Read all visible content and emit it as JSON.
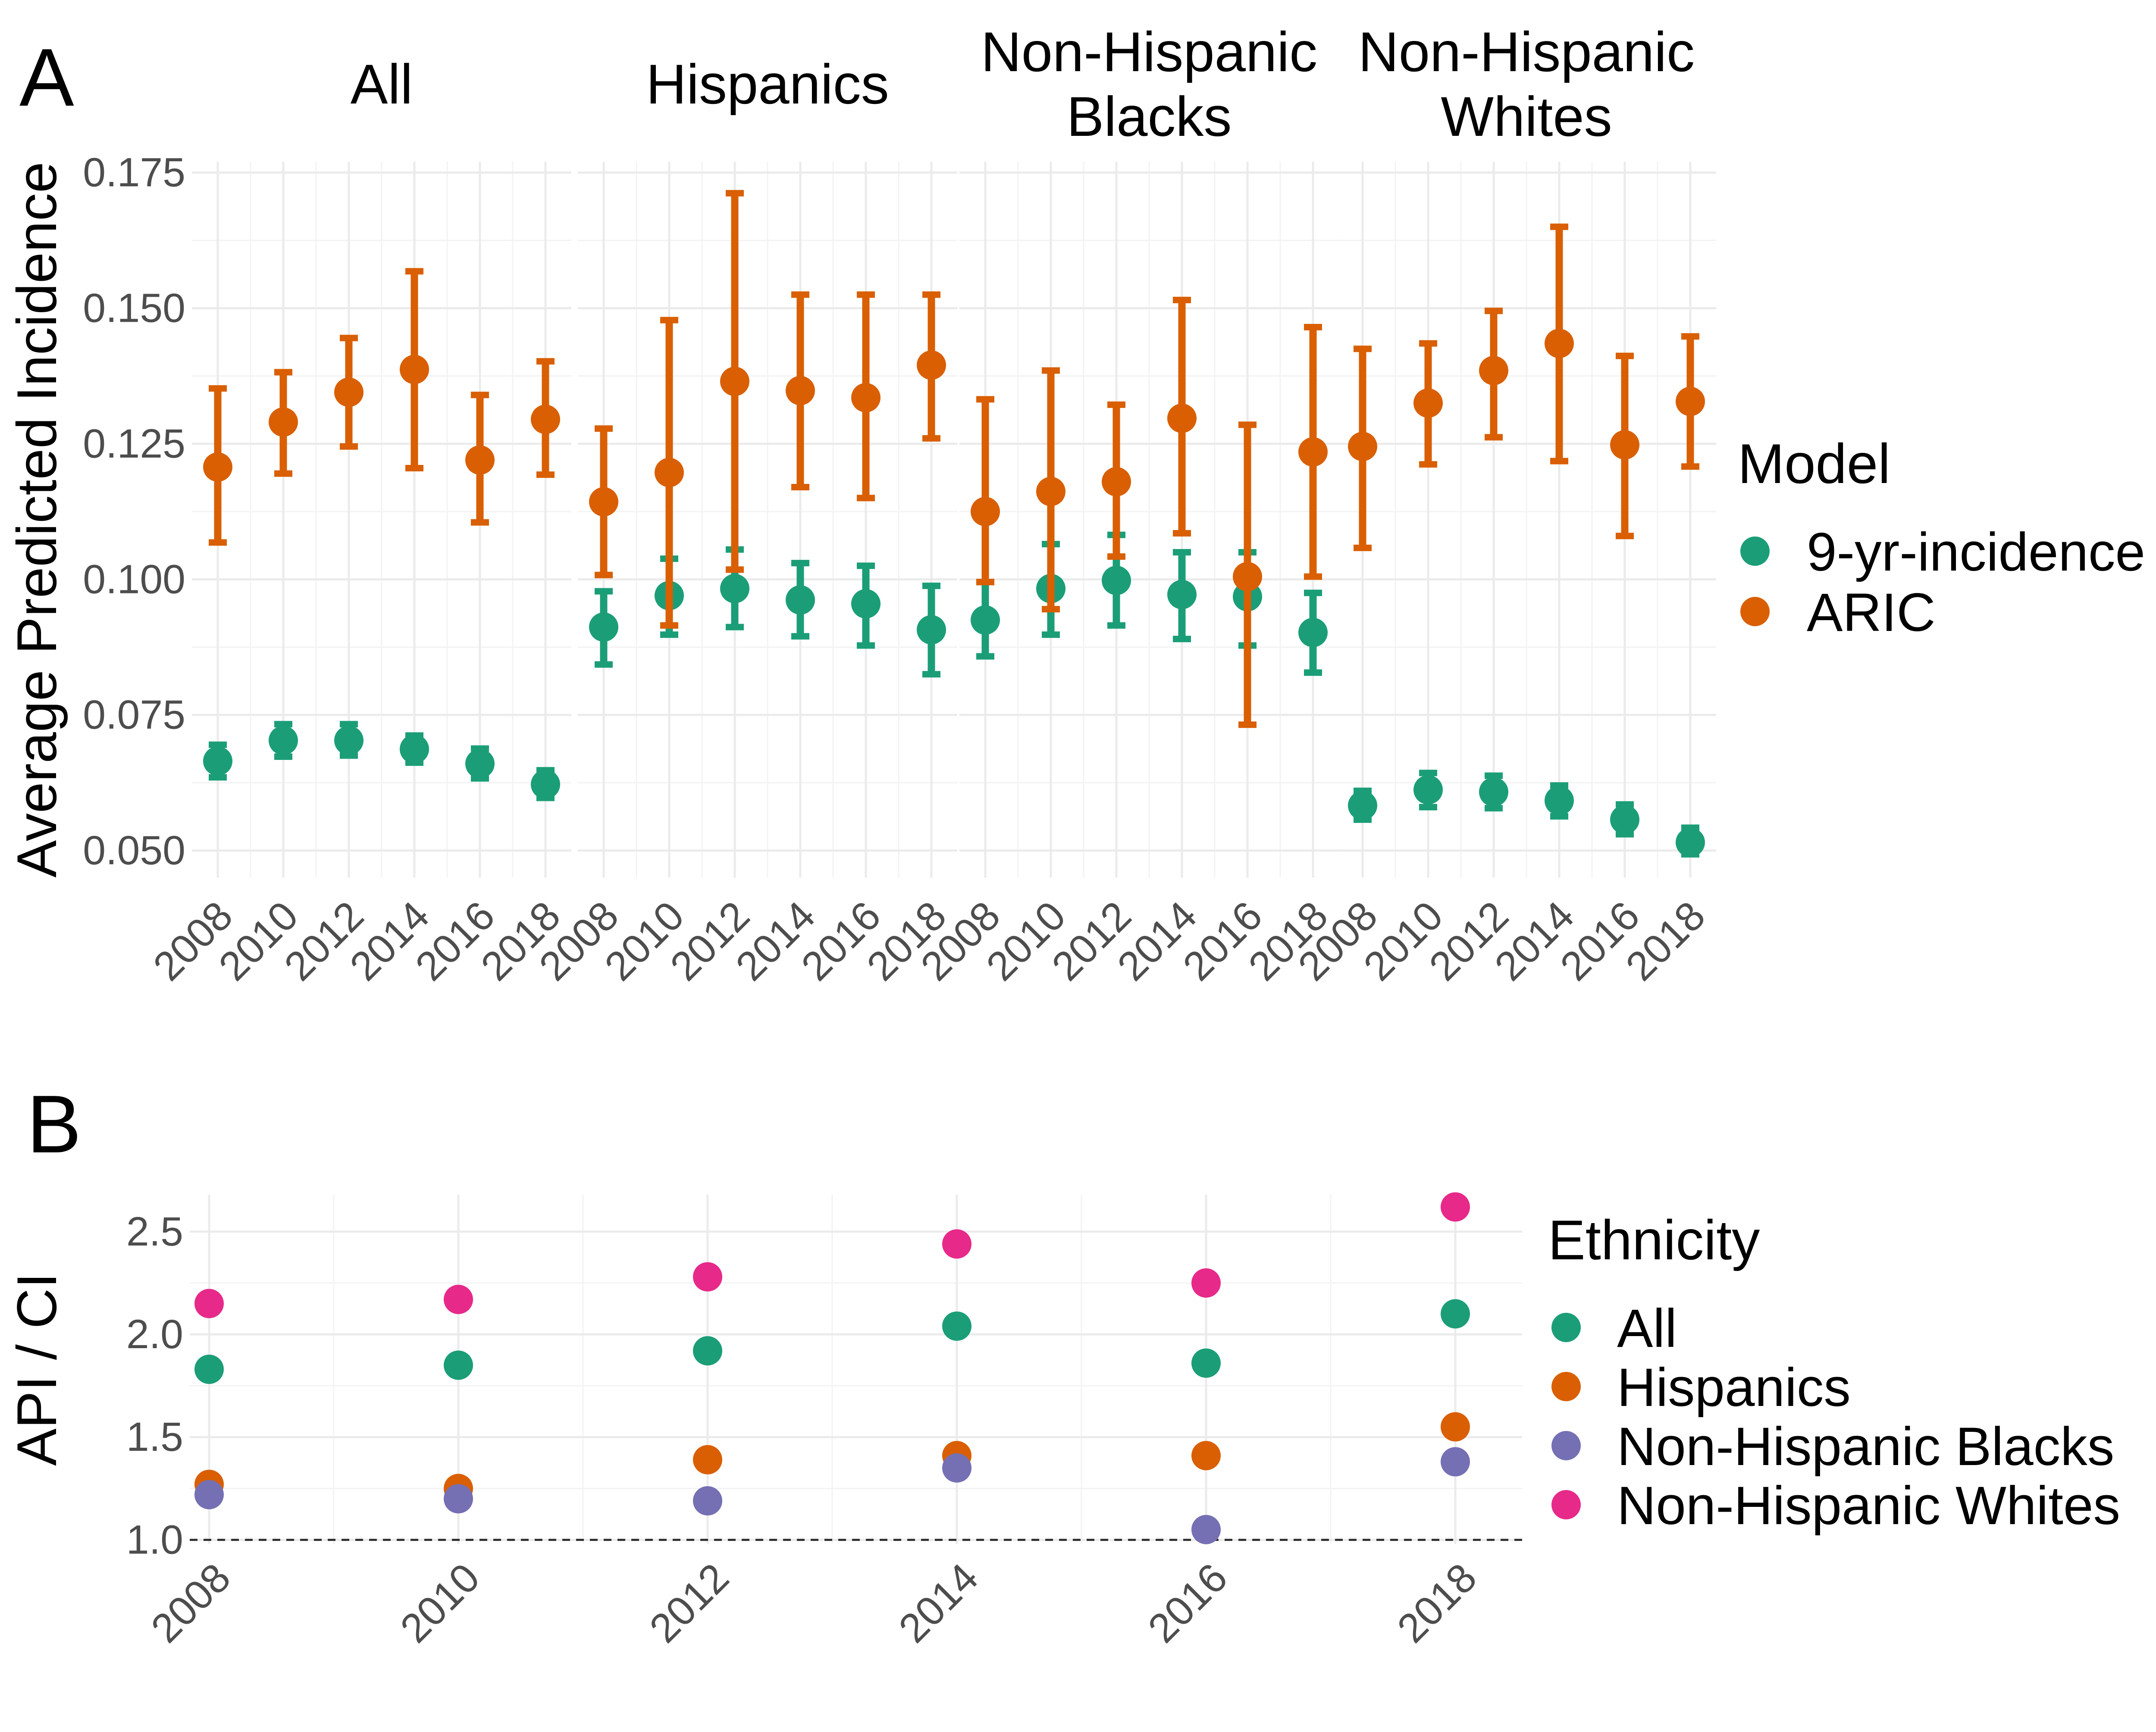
{
  "colors": {
    "9-yr-incidence": "#1b9e77",
    "ARIC": "#d95f02",
    "All": "#1b9e77",
    "Hispanics": "#d95f02",
    "Non-Hispanic Blacks": "#7570b3",
    "Non-Hispanic Whites": "#e7298a"
  },
  "chart_data": [
    {
      "panel": "A",
      "type": "scatter",
      "ylabel": "Average Predicted Incidence",
      "ylim": [
        0.045,
        0.177
      ],
      "yticks": [
        "0.050",
        "0.075",
        "0.100",
        "0.125",
        "0.150",
        "0.175"
      ],
      "ytick_values": [
        0.05,
        0.075,
        0.1,
        0.125,
        0.15,
        0.175
      ],
      "x": [
        2008,
        2010,
        2012,
        2014,
        2016,
        2018
      ],
      "xticks": [
        "2008",
        "2010",
        "2012",
        "2014",
        "2016",
        "2018"
      ],
      "legend": {
        "title": "Model",
        "entries": [
          "9-yr-incidence",
          "ARIC"
        ],
        "position": "right"
      },
      "facets": [
        {
          "title_lines": [
            "All"
          ],
          "series": [
            {
              "name": "9-yr-incidence",
              "values": [
                0.0665,
                0.0703,
                0.0703,
                0.0687,
                0.066,
                0.0622
              ],
              "lower": [
                0.0635,
                0.0673,
                0.0675,
                0.0662,
                0.0633,
                0.0597
              ],
              "upper": [
                0.0695,
                0.0733,
                0.0733,
                0.0712,
                0.0688,
                0.0648
              ]
            },
            {
              "name": "ARIC",
              "values": [
                0.1207,
                0.129,
                0.1345,
                0.1387,
                0.122,
                0.1295
              ],
              "lower": [
                0.1068,
                0.1195,
                0.1245,
                0.1205,
                0.1105,
                0.1193
              ],
              "upper": [
                0.1352,
                0.1382,
                0.1445,
                0.1568,
                0.134,
                0.1402
              ]
            }
          ]
        },
        {
          "title_lines": [
            "Hispanics"
          ],
          "series": [
            {
              "name": "9-yr-incidence",
              "values": [
                0.0912,
                0.097,
                0.0983,
                0.0962,
                0.0955,
                0.0907
              ],
              "lower": [
                0.0843,
                0.0898,
                0.0912,
                0.0895,
                0.0878,
                0.0825
              ],
              "upper": [
                0.0978,
                0.1038,
                0.1055,
                0.103,
                0.1025,
                0.0988
              ]
            },
            {
              "name": "ARIC",
              "values": [
                0.1143,
                0.1197,
                0.1365,
                0.1348,
                0.1335,
                0.1395
              ],
              "lower": [
                0.1008,
                0.0915,
                0.1018,
                0.117,
                0.115,
                0.126
              ],
              "upper": [
                0.1278,
                0.1478,
                0.1712,
                0.1525,
                0.1525,
                0.1525
              ]
            }
          ]
        },
        {
          "title_lines": [
            "Non-Hispanic",
            "Blacks"
          ],
          "series": [
            {
              "name": "9-yr-incidence",
              "values": [
                0.0925,
                0.0983,
                0.0998,
                0.0972,
                0.0968,
                0.0902
              ],
              "lower": [
                0.0858,
                0.0898,
                0.0915,
                0.089,
                0.0878,
                0.0828
              ],
              "upper": [
                0.0995,
                0.1065,
                0.1082,
                0.105,
                0.105,
                0.0975
              ]
            },
            {
              "name": "ARIC",
              "values": [
                0.1125,
                0.1162,
                0.118,
                0.1297,
                0.1005,
                0.1235
              ],
              "lower": [
                0.0995,
                0.0945,
                0.1042,
                0.1085,
                0.0732,
                0.1005
              ],
              "upper": [
                0.1332,
                0.1385,
                0.1322,
                0.1515,
                0.1285,
                0.1465
              ]
            }
          ]
        },
        {
          "title_lines": [
            "Non-Hispanic",
            "Whites"
          ],
          "series": [
            {
              "name": "9-yr-incidence",
              "values": [
                0.0583,
                0.0612,
                0.0608,
                0.0592,
                0.0557,
                0.0515
              ],
              "lower": [
                0.0557,
                0.058,
                0.0578,
                0.0563,
                0.053,
                0.0493
              ],
              "upper": [
                0.061,
                0.0643,
                0.0638,
                0.062,
                0.0585,
                0.0542
              ]
            },
            {
              "name": "ARIC",
              "values": [
                0.1245,
                0.1325,
                0.1385,
                0.1435,
                0.1248,
                0.1328
              ],
              "lower": [
                0.1058,
                0.1212,
                0.1262,
                0.1218,
                0.108,
                0.1208
              ],
              "upper": [
                0.1425,
                0.1435,
                0.1495,
                0.165,
                0.1412,
                0.1448
              ]
            }
          ]
        }
      ]
    },
    {
      "panel": "B",
      "type": "scatter",
      "ylabel": "API / CI",
      "ylim": [
        0.98,
        2.68
      ],
      "yticks": [
        "1.0",
        "1.5",
        "2.0",
        "2.5"
      ],
      "ytick_values": [
        1.0,
        1.5,
        2.0,
        2.5
      ],
      "x": [
        2008,
        2010,
        2012,
        2014,
        2016,
        2018
      ],
      "xticks": [
        "2008",
        "2010",
        "2012",
        "2014",
        "2016",
        "2018"
      ],
      "reference_line": 1.0,
      "legend": {
        "title": "Ethnicity",
        "entries": [
          "All",
          "Hispanics",
          "Non-Hispanic Blacks",
          "Non-Hispanic Whites"
        ],
        "position": "right"
      },
      "series": [
        {
          "name": "All",
          "values": [
            1.83,
            1.85,
            1.92,
            2.04,
            1.86,
            2.1
          ]
        },
        {
          "name": "Hispanics",
          "values": [
            1.27,
            1.25,
            1.39,
            1.41,
            1.41,
            1.55
          ]
        },
        {
          "name": "Non-Hispanic Blacks",
          "values": [
            1.22,
            1.2,
            1.19,
            1.35,
            1.05,
            1.38
          ]
        },
        {
          "name": "Non-Hispanic Whites",
          "values": [
            2.15,
            2.17,
            2.28,
            2.44,
            2.25,
            2.62
          ]
        }
      ]
    }
  ]
}
